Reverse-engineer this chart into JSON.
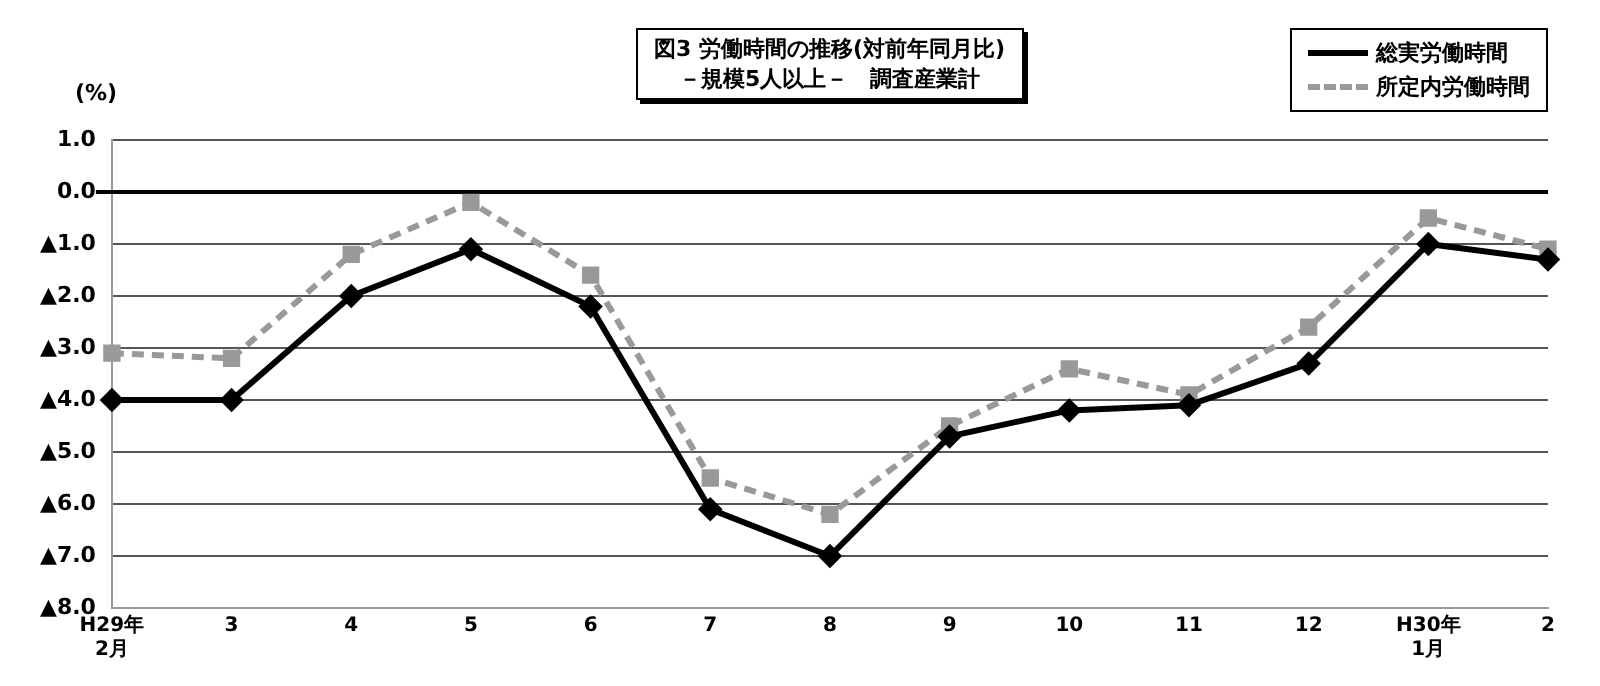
{
  "chart_data": {
    "type": "line",
    "title": "図3 労働時間の推移(対前年同月比)",
    "subtitle": "－規模5人以上－　調査産業計",
    "ylabel": "(%)",
    "categories": [
      "H29年\n2月",
      "3",
      "4",
      "5",
      "6",
      "7",
      "8",
      "9",
      "10",
      "11",
      "12",
      "H30年\n1月",
      "2"
    ],
    "series": [
      {
        "name": "総実労働時間",
        "color": "#000000",
        "marker": "diamond",
        "line_style": "solid",
        "values": [
          -4.0,
          -4.0,
          -2.0,
          -1.1,
          -2.2,
          -6.1,
          -7.0,
          -4.7,
          -4.2,
          -4.1,
          -3.3,
          -1.0,
          -1.3
        ]
      },
      {
        "name": "所定内労働時間",
        "color": "#999999",
        "marker": "square",
        "line_style": "dashed",
        "values": [
          -3.1,
          -3.2,
          -1.2,
          -0.2,
          -1.6,
          -5.5,
          -6.2,
          -4.5,
          -3.4,
          -3.9,
          -2.6,
          -0.5,
          -1.1
        ]
      }
    ],
    "ylim": [
      -8,
      1
    ],
    "yticks": [
      {
        "value": 1,
        "label": "1.0"
      },
      {
        "value": 0,
        "label": "0.0"
      },
      {
        "value": -1,
        "label": "▲1.0"
      },
      {
        "value": -2,
        "label": "▲2.0"
      },
      {
        "value": -3,
        "label": "▲3.0"
      },
      {
        "value": -4,
        "label": "▲4.0"
      },
      {
        "value": -5,
        "label": "▲5.0"
      },
      {
        "value": -6,
        "label": "▲6.0"
      },
      {
        "value": -7,
        "label": "▲7.0"
      },
      {
        "value": -8,
        "label": "▲8.0"
      }
    ],
    "ref_lines": [
      {
        "axis": "y",
        "value": 0,
        "color": "#000000"
      }
    ],
    "grid": "y",
    "legend": "top right"
  }
}
